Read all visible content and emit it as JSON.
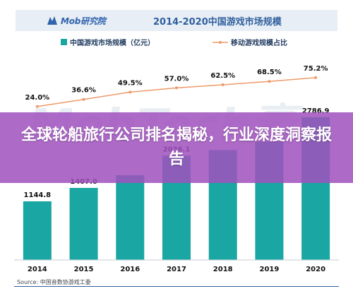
{
  "header": {
    "logo_text": "Mob研究院",
    "chart_title": "2014-2020中国游戏市场规模"
  },
  "banner": {
    "text": "全球轮船旅行公司排名揭秘，行业深度洞察报告"
  },
  "source": "Source:    中国音数协游戏工委",
  "watermark": "MobTech袤",
  "colors": {
    "bar": "#1aa6a3",
    "line": "#ee9a6a",
    "title": "#2f5f9e",
    "header_bg": "#e8eef5",
    "banner": "#a152be"
  },
  "chart_data": {
    "type": "bar",
    "title": "2014-2020中国游戏市场规模",
    "categories": [
      "2014",
      "2015",
      "2016",
      "2017",
      "2018",
      "2019",
      "2020"
    ],
    "series": [
      {
        "name": "中国游戏市场规模（亿元）",
        "type": "bar",
        "values": [
          1144.8,
          1407.0,
          1655.7,
          2036.1,
          2144.4,
          2308.8,
          2786.9
        ],
        "labels": [
          "1144.8",
          "1407.0",
          "",
          "2036.1",
          "",
          "",
          "2786.9"
        ]
      },
      {
        "name": "移动游戏规模占比",
        "type": "line",
        "values": [
          24.0,
          36.6,
          49.5,
          57.0,
          62.5,
          68.5,
          75.2
        ],
        "labels": [
          "24.0%",
          "36.6%",
          "49.5%",
          "57.0%",
          "62.5%",
          "68.5%",
          "75.2%"
        ]
      }
    ],
    "ylim": [
      0,
      4000
    ],
    "y2lim": [
      0,
      100
    ],
    "grid": false,
    "legend": "top"
  }
}
